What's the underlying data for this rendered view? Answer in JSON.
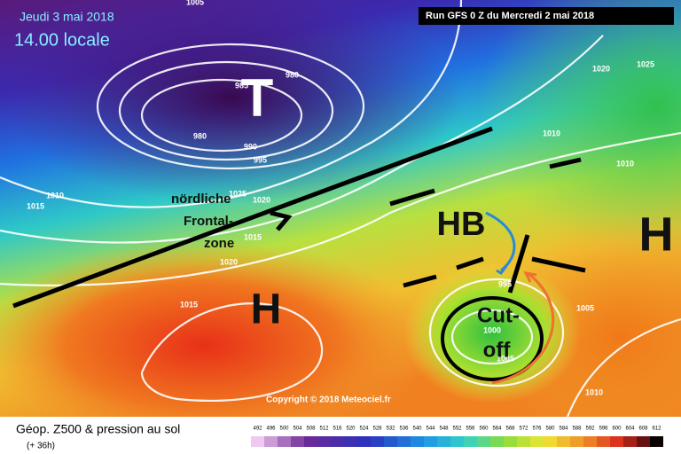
{
  "header": {
    "date": "Jeudi 3 mai 2018",
    "time": "14.00 locale",
    "run": "Run GFS 0 Z du Mercredi 2 mai 2018"
  },
  "map": {
    "isobar_labels": [
      "1005",
      "980",
      "985",
      "980",
      "990",
      "995",
      "1010",
      "1015",
      "1020",
      "1025",
      "1015",
      "1020",
      "1015",
      "1020",
      "1025",
      "1010",
      "1010",
      "1005",
      "995",
      "1000",
      "1005",
      "1010"
    ],
    "annotations": {
      "low": "T",
      "high_west": "H",
      "high_east": "H",
      "hb": "HB",
      "frontal_zone_1": "nördliche",
      "frontal_zone_2": "Frontal-",
      "frontal_zone_3": "zone",
      "cutoff_1": "Cut-",
      "cutoff_2": "off"
    },
    "copyright": "Copyright © 2018 Meteociel.fr"
  },
  "legend": {
    "title": "Géop. Z500 & pression au sol",
    "lead": "(+ 36h)",
    "scale": [
      492,
      496,
      500,
      504,
      508,
      512,
      516,
      520,
      524,
      528,
      532,
      536,
      540,
      544,
      548,
      552,
      556,
      560,
      564,
      568,
      572,
      576,
      580,
      584,
      588,
      592,
      596,
      600,
      604,
      608,
      612
    ]
  }
}
